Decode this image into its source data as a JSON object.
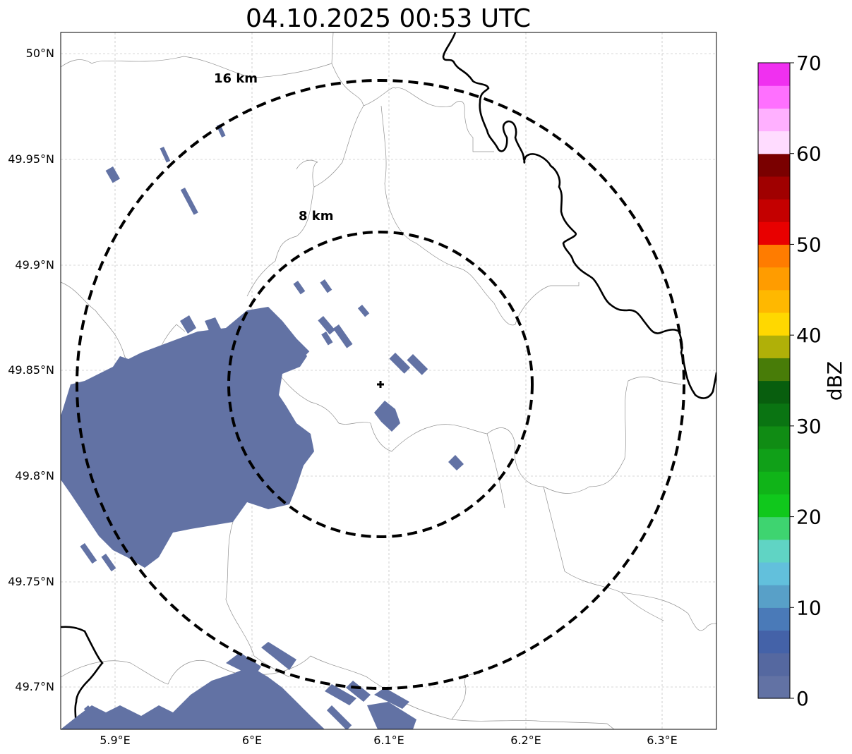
{
  "title": "04.10.2025 00:53 UTC",
  "map": {
    "lon_range": [
      5.86,
      6.34
    ],
    "lat_range": [
      49.68,
      50.01
    ],
    "lon_ticks": [
      {
        "value": 5.9,
        "label": "5.9°E"
      },
      {
        "value": 6.0,
        "label": "6°E"
      },
      {
        "value": 6.1,
        "label": "6.1°E"
      },
      {
        "value": 6.2,
        "label": "6.2°E"
      },
      {
        "value": 6.3,
        "label": "6.3°E"
      }
    ],
    "lat_ticks": [
      {
        "value": 50.0,
        "label": "50°N"
      },
      {
        "value": 49.95,
        "label": "49.95°N"
      },
      {
        "value": 49.9,
        "label": "49.9°N"
      },
      {
        "value": 49.85,
        "label": "49.85°N"
      },
      {
        "value": 49.8,
        "label": "49.8°N"
      },
      {
        "value": 49.75,
        "label": "49.75°N"
      },
      {
        "value": 49.7,
        "label": "49.7°N"
      }
    ],
    "radar_site": {
      "lon": 6.094,
      "lat": 49.843
    },
    "range_rings": [
      {
        "label": "16 km",
        "radius_km": 16
      },
      {
        "label": "8 km",
        "radius_km": 8
      }
    ]
  },
  "colorbar": {
    "label": "dBZ",
    "min": 0,
    "max": 70,
    "ticks": [
      "0",
      "10",
      "20",
      "30",
      "40",
      "50",
      "60",
      "70"
    ],
    "colors": [
      "#6272a4",
      "#5568a0",
      "#4462a8",
      "#4a7ab8",
      "#58a0c8",
      "#62c0dc",
      "#60d4c4",
      "#3ed470",
      "#10c81c",
      "#10b418",
      "#10a018",
      "#108c14",
      "#0a7412",
      "#085e0e",
      "#487c08",
      "#b0b008",
      "#ffd800",
      "#ffb800",
      "#ff9c00",
      "#ff7c00",
      "#e80000",
      "#c40000",
      "#a00000",
      "#7a0000",
      "#ffdcff",
      "#ffb0ff",
      "#ff70ff",
      "#f030f0"
    ]
  },
  "echo_color": "#6272a4"
}
